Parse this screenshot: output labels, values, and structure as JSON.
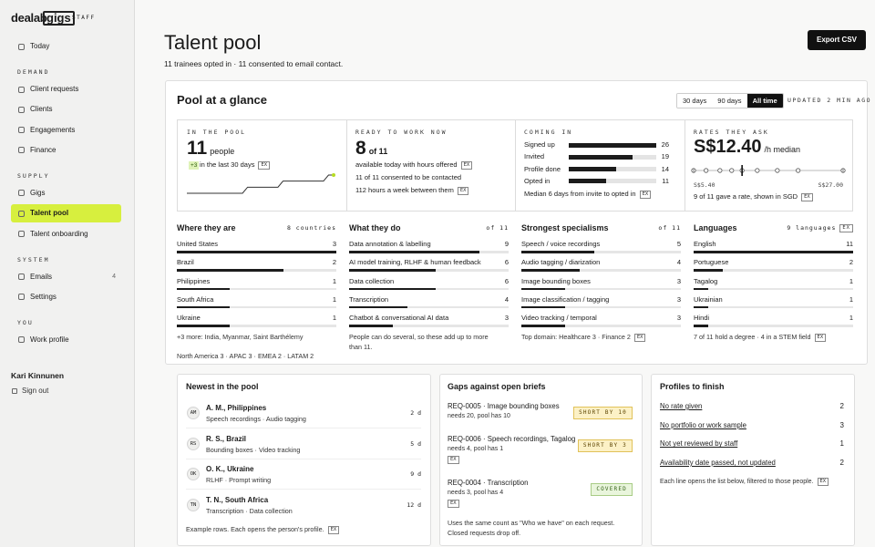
{
  "sidebar": {
    "logo": "dealab",
    "logo_box": "gigs",
    "badge": "STAFF",
    "sections": [
      {
        "items": [
          {
            "label": "Today"
          }
        ]
      },
      {
        "heading": "DEMAND",
        "items": [
          {
            "label": "Client requests"
          },
          {
            "label": "Clients"
          },
          {
            "label": "Engagements"
          },
          {
            "label": "Finance"
          }
        ]
      },
      {
        "heading": "SUPPLY",
        "items": [
          {
            "label": "Gigs"
          },
          {
            "label": "Talent pool",
            "active": true
          },
          {
            "label": "Talent onboarding"
          }
        ]
      },
      {
        "heading": "SYSTEM",
        "items": [
          {
            "label": "Emails",
            "count": 4
          },
          {
            "label": "Settings"
          }
        ]
      },
      {
        "heading": "YOU",
        "items": [
          {
            "label": "Work profile"
          }
        ]
      }
    ],
    "user": "Kari Kinnunen",
    "sign_out": "Sign out"
  },
  "header": {
    "title": "Talent pool",
    "subtitle": "11 trainees opted in · 11 consented to email contact.",
    "export": "Export CSV"
  },
  "ex_badge": "EX",
  "glance": {
    "title": "Pool at a glance",
    "ranges": [
      {
        "label": "30 days"
      },
      {
        "label": "90 days"
      },
      {
        "label": "All time",
        "active": true
      }
    ],
    "updated": "UPDATED 2 MIN AGO",
    "pool": {
      "label": "IN THE POOL",
      "value": 11,
      "unit": "people",
      "delta": "+3",
      "delta_text": "in the last 30 days",
      "ex": true,
      "trend": [
        8,
        8,
        8,
        8,
        8,
        8,
        8,
        8,
        8,
        8,
        8,
        8,
        9,
        9,
        9,
        9,
        9,
        9,
        9,
        10,
        10,
        10,
        10,
        10,
        10,
        10,
        10,
        10,
        11,
        11
      ]
    },
    "ready": {
      "label": "READY TO WORK NOW",
      "value": 8,
      "of": "of 11",
      "lines": [
        {
          "text": "available today with hours offered",
          "ex": true
        },
        {
          "text": "11 of 11 consented to be contacted"
        },
        {
          "text": "112 hours a week between them",
          "ex": true
        }
      ]
    },
    "funnel": {
      "label": "COMING IN",
      "steps": [
        {
          "name": "Signed up",
          "value": 26
        },
        {
          "name": "Invited",
          "value": 19
        },
        {
          "name": "Profile done",
          "value": 14
        },
        {
          "name": "Opted in",
          "value": 11
        }
      ],
      "note": "Median 6 days from invite to opted in",
      "ex": true
    },
    "rates": {
      "label": "RATES THEY ASK",
      "median": {
        "value": 12.4,
        "label": "S$12.40"
      },
      "unit": "/h median",
      "values": [
        5.4,
        7.2,
        9.2,
        10.9,
        12.4,
        14.6,
        17.5,
        20.5,
        27
      ],
      "xlim": [
        5.4,
        27
      ],
      "xticks": [
        {
          "value": 5.4,
          "label": "S$5.40"
        },
        {
          "value": 27,
          "label": "S$27.00"
        }
      ],
      "note": "9 of 11 gave a rate, shown in SGD",
      "ex": true
    },
    "columns": [
      {
        "title": "Where they are",
        "note": "8 countries",
        "scale": "max",
        "rows": [
          {
            "label": "United States",
            "value": 3
          },
          {
            "label": "Brazil",
            "value": 2
          },
          {
            "label": "Philippines",
            "value": 1
          },
          {
            "label": "South Africa",
            "value": 1
          },
          {
            "label": "Ukraine",
            "value": 1
          }
        ],
        "footer": [
          "+3 more: India, Myanmar, Saint Barthélemy",
          "North America 3 · APAC 3 · EMEA 2 · LATAM 2"
        ]
      },
      {
        "title": "What they do",
        "note": "of 11",
        "scale": "pool",
        "rows": [
          {
            "label": "Data annotation & labelling",
            "value": 9
          },
          {
            "label": "AI model training, RLHF & human feedback",
            "value": 6
          },
          {
            "label": "Data collection",
            "value": 6
          },
          {
            "label": "Transcription",
            "value": 4
          },
          {
            "label": "Chatbot & conversational AI data",
            "value": 3
          }
        ],
        "footer": [
          "People can do several, so these add up to more than 11."
        ]
      },
      {
        "title": "Strongest specialisms",
        "note": "of 11",
        "scale": "pool",
        "rows": [
          {
            "label": "Speech / voice recordings",
            "value": 5
          },
          {
            "label": "Audio tagging / diarization",
            "value": 4
          },
          {
            "label": "Image bounding boxes",
            "value": 3
          },
          {
            "label": "Image classification / tagging",
            "value": 3
          },
          {
            "label": "Video tracking / temporal",
            "value": 3
          }
        ],
        "footer": [
          "Top domain: Healthcare 3 · Finance 2"
        ],
        "footer_ex": true
      },
      {
        "title": "Languages",
        "note": "9 languages",
        "note_ex": true,
        "scale": "pool",
        "rows": [
          {
            "label": "English",
            "value": 11
          },
          {
            "label": "Portuguese",
            "value": 2
          },
          {
            "label": "Tagalog",
            "value": 1
          },
          {
            "label": "Ukrainian",
            "value": 1
          },
          {
            "label": "Hindi",
            "value": 1
          }
        ],
        "footer": [
          "7 of 11 hold a degree · 4 in a STEM field"
        ],
        "footer_ex": true
      }
    ]
  },
  "newest": {
    "title": "Newest in the pool",
    "rows": [
      {
        "initials": "AM",
        "name": "A. M., Philippines",
        "skills": "Speech recordings · Audio tagging",
        "age": "2 d"
      },
      {
        "initials": "RS",
        "name": "R. S., Brazil",
        "skills": "Bounding boxes · Video tracking",
        "age": "5 d"
      },
      {
        "initials": "OK",
        "name": "O. K., Ukraine",
        "skills": "RLHF · Prompt writing",
        "age": "9 d"
      },
      {
        "initials": "TN",
        "name": "T. N., South Africa",
        "skills": "Transcription · Data collection",
        "age": "12 d"
      }
    ],
    "footer": "Example rows. Each opens the person's profile.",
    "ex": true
  },
  "gaps": {
    "title": "Gaps against open briefs",
    "rows": [
      {
        "title": "REQ-0005 · Image bounding boxes",
        "need": "needs 20, pool has 10",
        "status": "SHORT BY 10",
        "kind": "short"
      },
      {
        "title": "REQ-0006 · Speech recordings, Tagalog",
        "need": "needs 4, pool has 1",
        "ex": true,
        "status": "SHORT BY 3",
        "kind": "short"
      },
      {
        "title": "REQ-0004 · Transcription",
        "need": "needs 3, pool has 4",
        "ex": true,
        "status": "COVERED",
        "kind": "covered"
      }
    ],
    "footer": "Uses the same count as \"Who we have\" on each request. Closed requests drop off."
  },
  "profiles": {
    "title": "Profiles to finish",
    "rows": [
      {
        "label": "No rate given",
        "count": 2
      },
      {
        "label": "No portfolio or work sample",
        "count": 3
      },
      {
        "label": "Not yet reviewed by staff",
        "count": 1
      },
      {
        "label": "Availability date passed, not updated",
        "count": 2
      }
    ],
    "footer": "Each line opens the list below, filtered to those people.",
    "ex": true
  }
}
